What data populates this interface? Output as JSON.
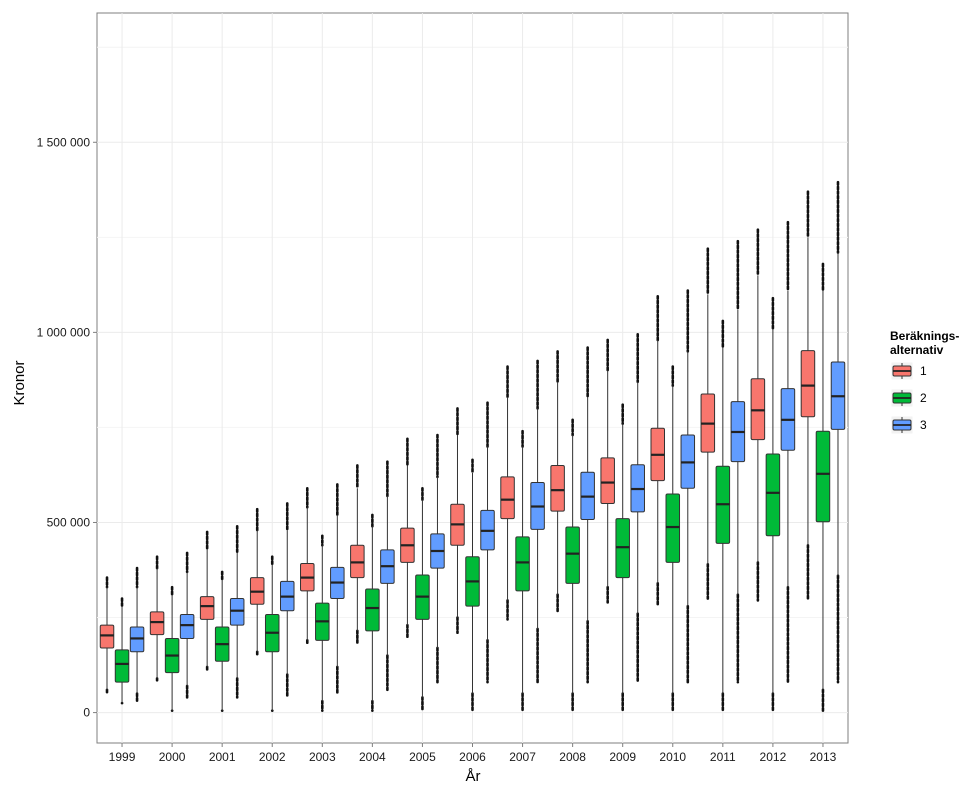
{
  "chart_data": {
    "type": "boxplot",
    "xlabel": "År",
    "ylabel": "Kronor",
    "categories": [
      "1999",
      "2000",
      "2001",
      "2002",
      "2003",
      "2004",
      "2005",
      "2006",
      "2007",
      "2008",
      "2009",
      "2010",
      "2011",
      "2012",
      "2013"
    ],
    "ylim": [
      -80000,
      1840000
    ],
    "yticks": [
      {
        "value": 0,
        "label": "0"
      },
      {
        "value": 500000,
        "label": "500 000"
      },
      {
        "value": 1000000,
        "label": "1 000 000"
      },
      {
        "value": 1500000,
        "label": "1 500 000"
      }
    ],
    "grid": true,
    "legend": {
      "title_lines": [
        "Beräknings-",
        "alternativ"
      ],
      "placement": "right"
    },
    "series": [
      {
        "name": "1",
        "color": "#F8766D",
        "boxes": [
          {
            "q1": 170000,
            "median": 203000,
            "q3": 230000,
            "low": 60000,
            "high": 330000,
            "out_min": 50000,
            "out_max": 355000
          },
          {
            "q1": 205000,
            "median": 238000,
            "q3": 265000,
            "low": 90000,
            "high": 380000,
            "out_min": 85000,
            "out_max": 410000
          },
          {
            "q1": 245000,
            "median": 280000,
            "q3": 305000,
            "low": 120000,
            "high": 430000,
            "out_min": 110000,
            "out_max": 475000
          },
          {
            "q1": 285000,
            "median": 318000,
            "q3": 355000,
            "low": 160000,
            "high": 480000,
            "out_min": 150000,
            "out_max": 535000
          },
          {
            "q1": 320000,
            "median": 355000,
            "q3": 392000,
            "low": 190000,
            "high": 540000,
            "out_min": 180000,
            "out_max": 590000
          },
          {
            "q1": 355000,
            "median": 395000,
            "q3": 440000,
            "low": 215000,
            "high": 590000,
            "out_min": 180000,
            "out_max": 650000
          },
          {
            "q1": 395000,
            "median": 440000,
            "q3": 485000,
            "low": 230000,
            "high": 650000,
            "out_min": 195000,
            "out_max": 720000
          },
          {
            "q1": 440000,
            "median": 495000,
            "q3": 548000,
            "low": 250000,
            "high": 730000,
            "out_min": 210000,
            "out_max": 800000
          },
          {
            "q1": 510000,
            "median": 560000,
            "q3": 620000,
            "low": 295000,
            "high": 830000,
            "out_min": 245000,
            "out_max": 910000
          },
          {
            "q1": 530000,
            "median": 585000,
            "q3": 650000,
            "low": 310000,
            "high": 870000,
            "out_min": 265000,
            "out_max": 950000
          },
          {
            "q1": 550000,
            "median": 605000,
            "q3": 670000,
            "low": 330000,
            "high": 900000,
            "out_min": 290000,
            "out_max": 980000
          },
          {
            "q1": 610000,
            "median": 678000,
            "q3": 748000,
            "low": 340000,
            "high": 980000,
            "out_min": 280000,
            "out_max": 1095000
          },
          {
            "q1": 685000,
            "median": 760000,
            "q3": 838000,
            "low": 390000,
            "high": 1100000,
            "out_min": 300000,
            "out_max": 1220000
          },
          {
            "q1": 718000,
            "median": 795000,
            "q3": 878000,
            "low": 395000,
            "high": 1150000,
            "out_min": 295000,
            "out_max": 1270000
          },
          {
            "q1": 778000,
            "median": 860000,
            "q3": 952000,
            "low": 440000,
            "high": 1250000,
            "out_min": 300000,
            "out_max": 1370000
          }
        ]
      },
      {
        "name": "2",
        "color": "#00BA38",
        "boxes": [
          {
            "q1": 80000,
            "median": 128000,
            "q3": 165000,
            "low": 25000,
            "high": 280000,
            "out_min": 25000,
            "out_max": 300000
          },
          {
            "q1": 105000,
            "median": 150000,
            "q3": 195000,
            "low": 5000,
            "high": 310000,
            "out_min": 5000,
            "out_max": 330000
          },
          {
            "q1": 135000,
            "median": 180000,
            "q3": 225000,
            "low": 5000,
            "high": 350000,
            "out_min": 5000,
            "out_max": 370000
          },
          {
            "q1": 160000,
            "median": 210000,
            "q3": 258000,
            "low": 5000,
            "high": 390000,
            "out_min": 5000,
            "out_max": 410000
          },
          {
            "q1": 190000,
            "median": 240000,
            "q3": 288000,
            "low": 30000,
            "high": 440000,
            "out_min": 5000,
            "out_max": 465000
          },
          {
            "q1": 215000,
            "median": 275000,
            "q3": 325000,
            "low": 30000,
            "high": 490000,
            "out_min": 5000,
            "out_max": 520000
          },
          {
            "q1": 245000,
            "median": 305000,
            "q3": 362000,
            "low": 40000,
            "high": 560000,
            "out_min": 5000,
            "out_max": 590000
          },
          {
            "q1": 280000,
            "median": 345000,
            "q3": 410000,
            "low": 50000,
            "high": 630000,
            "out_min": 5000,
            "out_max": 665000
          },
          {
            "q1": 320000,
            "median": 395000,
            "q3": 462000,
            "low": 50000,
            "high": 700000,
            "out_min": 5000,
            "out_max": 740000
          },
          {
            "q1": 340000,
            "median": 418000,
            "q3": 488000,
            "low": 50000,
            "high": 730000,
            "out_min": 5000,
            "out_max": 770000
          },
          {
            "q1": 355000,
            "median": 435000,
            "q3": 510000,
            "low": 50000,
            "high": 760000,
            "out_min": 5000,
            "out_max": 810000
          },
          {
            "q1": 395000,
            "median": 488000,
            "q3": 575000,
            "low": 50000,
            "high": 860000,
            "out_min": 5000,
            "out_max": 910000
          },
          {
            "q1": 445000,
            "median": 548000,
            "q3": 648000,
            "low": 50000,
            "high": 960000,
            "out_min": 5000,
            "out_max": 1030000
          },
          {
            "q1": 465000,
            "median": 578000,
            "q3": 680000,
            "low": 50000,
            "high": 1010000,
            "out_min": 5000,
            "out_max": 1090000
          },
          {
            "q1": 502000,
            "median": 628000,
            "q3": 740000,
            "low": 60000,
            "high": 1110000,
            "out_min": 5000,
            "out_max": 1180000
          }
        ]
      },
      {
        "name": "3",
        "color": "#619CFF",
        "boxes": [
          {
            "q1": 160000,
            "median": 195000,
            "q3": 225000,
            "low": 50000,
            "high": 330000,
            "out_min": 30000,
            "out_max": 380000
          },
          {
            "q1": 195000,
            "median": 230000,
            "q3": 258000,
            "low": 70000,
            "high": 370000,
            "out_min": 40000,
            "out_max": 420000
          },
          {
            "q1": 230000,
            "median": 268000,
            "q3": 300000,
            "low": 90000,
            "high": 420000,
            "out_min": 40000,
            "out_max": 490000
          },
          {
            "q1": 268000,
            "median": 305000,
            "q3": 345000,
            "low": 100000,
            "high": 480000,
            "out_min": 40000,
            "out_max": 550000
          },
          {
            "q1": 300000,
            "median": 342000,
            "q3": 382000,
            "low": 120000,
            "high": 520000,
            "out_min": 50000,
            "out_max": 600000
          },
          {
            "q1": 340000,
            "median": 385000,
            "q3": 428000,
            "low": 150000,
            "high": 570000,
            "out_min": 60000,
            "out_max": 660000
          },
          {
            "q1": 380000,
            "median": 425000,
            "q3": 470000,
            "low": 170000,
            "high": 620000,
            "out_min": 80000,
            "out_max": 730000
          },
          {
            "q1": 428000,
            "median": 478000,
            "q3": 532000,
            "low": 190000,
            "high": 700000,
            "out_min": 80000,
            "out_max": 815000
          },
          {
            "q1": 482000,
            "median": 542000,
            "q3": 605000,
            "low": 220000,
            "high": 800000,
            "out_min": 80000,
            "out_max": 925000
          },
          {
            "q1": 508000,
            "median": 568000,
            "q3": 632000,
            "low": 240000,
            "high": 830000,
            "out_min": 80000,
            "out_max": 960000
          },
          {
            "q1": 528000,
            "median": 588000,
            "q3": 652000,
            "low": 260000,
            "high": 870000,
            "out_min": 80000,
            "out_max": 995000
          },
          {
            "q1": 590000,
            "median": 658000,
            "q3": 730000,
            "low": 280000,
            "high": 950000,
            "out_min": 80000,
            "out_max": 1110000
          },
          {
            "q1": 660000,
            "median": 738000,
            "q3": 818000,
            "low": 310000,
            "high": 1060000,
            "out_min": 80000,
            "out_max": 1240000
          },
          {
            "q1": 690000,
            "median": 770000,
            "q3": 852000,
            "low": 330000,
            "high": 1110000,
            "out_min": 80000,
            "out_max": 1290000
          },
          {
            "q1": 745000,
            "median": 832000,
            "q3": 922000,
            "low": 360000,
            "high": 1210000,
            "out_min": 80000,
            "out_max": 1395000
          }
        ]
      }
    ]
  }
}
